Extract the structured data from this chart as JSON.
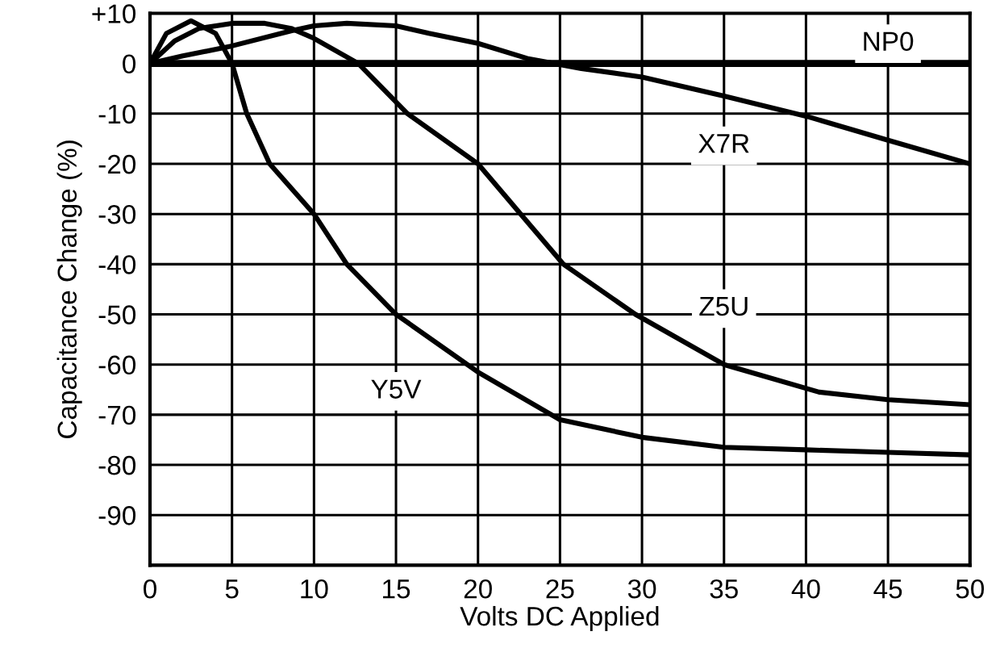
{
  "chart_data": {
    "type": "line",
    "xlabel": "Volts DC Applied",
    "ylabel": "Capacitance Change (%)",
    "xlim": [
      0,
      50
    ],
    "ylim": [
      -100,
      10
    ],
    "xticks": [
      0,
      5,
      10,
      15,
      20,
      25,
      30,
      35,
      40,
      45,
      50
    ],
    "yticks": [
      {
        "value": 10,
        "label": "+10"
      },
      0,
      -10,
      -20,
      -30,
      -40,
      -50,
      -60,
      -70,
      -80,
      -90,
      {
        "value": -100,
        "label": null
      }
    ],
    "grid": true,
    "line_style": "solid",
    "marker": "none",
    "series": [
      {
        "name": "NP0",
        "color": "#000000",
        "x": [
          0,
          50
        ],
        "values": [
          0,
          0
        ]
      },
      {
        "name": "X7R",
        "color": "#000000",
        "x": [
          0,
          2,
          5,
          8.6,
          10,
          12,
          15,
          17,
          20,
          23,
          26.3,
          30,
          35,
          40,
          45,
          50
        ],
        "values": [
          0,
          1.5,
          3.5,
          6.5,
          7.5,
          8,
          7.5,
          6,
          4,
          1,
          -1,
          -2.7,
          -6.5,
          -10.5,
          -15.3,
          -20
        ]
      },
      {
        "name": "Z5U",
        "color": "#000000",
        "x": [
          0,
          1.5,
          3,
          5,
          7,
          8.6,
          10,
          12.7,
          15.7,
          20,
          22.6,
          25.2,
          29.6,
          35,
          40.8,
          45,
          50
        ],
        "values": [
          0,
          4.5,
          7,
          8,
          8,
          7,
          5,
          0,
          -10,
          -20,
          -30,
          -40,
          -50,
          -60,
          -65.5,
          -67,
          -68
        ]
      },
      {
        "name": "Y5V",
        "color": "#000000",
        "x": [
          0,
          1,
          2.5,
          4,
          5,
          5.9,
          7.3,
          10,
          12,
          15,
          20,
          25,
          30,
          35,
          40,
          45,
          50
        ],
        "values": [
          0,
          6,
          8.5,
          6,
          0,
          -10,
          -20,
          -30,
          -40,
          -50,
          -61.5,
          -71,
          -74.5,
          -76.5,
          -77,
          -77.5,
          -78
        ]
      }
    ]
  }
}
